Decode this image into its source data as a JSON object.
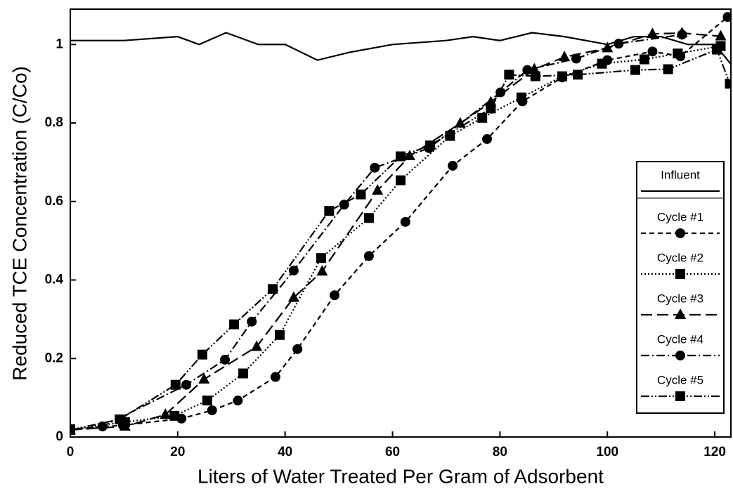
{
  "chart_data": {
    "type": "line",
    "x_label": "Liters of Water Treated Per Gram of Adsorbent",
    "y_label": "Reduced TCE Concentration (C/Co)",
    "xlim": [
      0,
      123
    ],
    "ylim": [
      0,
      1.09
    ],
    "xticks": [
      0,
      20,
      40,
      60,
      80,
      100,
      120
    ],
    "yticks": [
      0,
      0.2,
      0.4,
      0.6,
      0.8,
      1
    ],
    "legend": "right",
    "series": [
      {
        "name": "Influent",
        "color": "#000000",
        "dash": "solid",
        "x": [
          0,
          10,
          20,
          24,
          29,
          35,
          40,
          46,
          52,
          60,
          70,
          75,
          80,
          86,
          92,
          100,
          105,
          110,
          115,
          120,
          123
        ],
        "values": [
          1.01,
          1.01,
          1.02,
          1.0,
          1.03,
          1.0,
          1.0,
          0.96,
          0.98,
          1.0,
          1.01,
          1.02,
          1.01,
          1.03,
          1.02,
          1.0,
          1.02,
          1.02,
          1.0,
          1.0,
          0.95
        ]
      },
      {
        "name": "Cycle #1",
        "color": "#000000",
        "dash": "dashed",
        "marker": "circle",
        "x": [
          0,
          9.8,
          20.7,
          26.4,
          31.2,
          38.2,
          42.3,
          49.2,
          55.6,
          62.4,
          71.2,
          77.6,
          84.2,
          91.6,
          100,
          108.4,
          113.6,
          122.4
        ],
        "values": [
          0.02,
          0.03,
          0.047,
          0.068,
          0.093,
          0.153,
          0.224,
          0.361,
          0.461,
          0.548,
          0.691,
          0.759,
          0.855,
          0.916,
          0.96,
          0.982,
          0.97,
          1.07
        ]
      },
      {
        "name": "Cycle #2",
        "color": "#000000",
        "dash": "dotted",
        "marker": "square",
        "x": [
          0,
          10.2,
          19.4,
          25.5,
          32.2,
          39,
          46.7,
          55.6,
          61.5,
          70.7,
          76.7,
          84,
          91.6,
          99,
          106.9,
          113.1,
          121.1
        ],
        "values": [
          0.02,
          0.038,
          0.054,
          0.093,
          0.162,
          0.26,
          0.456,
          0.558,
          0.654,
          0.767,
          0.813,
          0.865,
          0.919,
          0.951,
          0.962,
          0.977,
          0.996
        ]
      },
      {
        "name": "Cycle #3",
        "color": "#000000",
        "dash": "longdash",
        "marker": "triangle",
        "x": [
          0,
          10.2,
          17.7,
          24.9,
          34.7,
          41.6,
          46.9,
          57.2,
          63.2,
          72.6,
          78.3,
          86.4,
          92,
          100,
          108.4,
          113.9,
          121.1
        ],
        "values": [
          0.018,
          0.027,
          0.057,
          0.147,
          0.23,
          0.355,
          0.422,
          0.628,
          0.716,
          0.799,
          0.853,
          0.937,
          0.968,
          0.991,
          1.027,
          1.029,
          1.021
        ]
      },
      {
        "name": "Cycle #4",
        "color": "#000000",
        "dash": "dashdot",
        "marker": "circle",
        "x": [
          0,
          6,
          21.6,
          28.8,
          33.8,
          41.6,
          51,
          56.7,
          66.8,
          80.1,
          85.1,
          94.2,
          102.1,
          113.9
        ],
        "values": [
          0.018,
          0.027,
          0.133,
          0.197,
          0.294,
          0.424,
          0.592,
          0.686,
          0.736,
          0.878,
          0.935,
          0.964,
          1.002,
          1.025
        ]
      },
      {
        "name": "Cycle #5",
        "color": "#000000",
        "dash": "dashdotdot",
        "marker": "square",
        "x": [
          0,
          9.2,
          19.6,
          24.6,
          30.5,
          37.7,
          48.2,
          54.1,
          61.5,
          67,
          78.3,
          81.7,
          86.6,
          94.5,
          105.2,
          111.3,
          120.4,
          122.8
        ],
        "values": [
          0.018,
          0.045,
          0.133,
          0.21,
          0.287,
          0.377,
          0.576,
          0.618,
          0.715,
          0.743,
          0.837,
          0.923,
          0.919,
          0.923,
          0.935,
          0.937,
          0.987,
          0.9
        ]
      }
    ]
  }
}
